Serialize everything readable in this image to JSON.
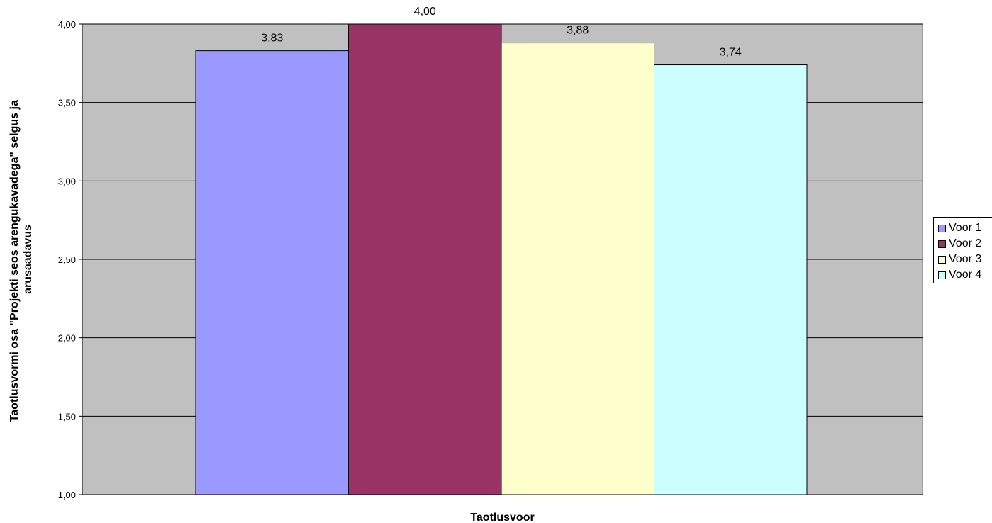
{
  "chart_data": {
    "type": "bar",
    "title": "",
    "xlabel": "Taotlusvoor",
    "ylabel": "Taotlusvormi osa \"Projekti seos arengukavadega\" selgus ja arusaadavus",
    "ylabel_lines": [
      "Taotlusvormi osa \"Projekti seos arengukavadega\" selgus ja",
      "arusaadavus"
    ],
    "ylim": [
      1.0,
      4.0
    ],
    "yticks": [
      "1,00",
      "1,50",
      "2,00",
      "2,50",
      "3,00",
      "3,50",
      "4,00"
    ],
    "ytick_values": [
      1.0,
      1.5,
      2.0,
      2.5,
      3.0,
      3.5,
      4.0
    ],
    "grid": true,
    "legend_position": "right",
    "plot_background": "#c0c0c0",
    "series": [
      {
        "name": "Voor 1",
        "value": 3.83,
        "label": "3,83",
        "color": "#9999ff"
      },
      {
        "name": "Voor 2",
        "value": 4.0,
        "label": "4,00",
        "color": "#993366"
      },
      {
        "name": "Voor 3",
        "value": 3.88,
        "label": "3,88",
        "color": "#ffffcc"
      },
      {
        "name": "Voor 4",
        "value": 3.74,
        "label": "3,74",
        "color": "#ccffff"
      }
    ]
  }
}
